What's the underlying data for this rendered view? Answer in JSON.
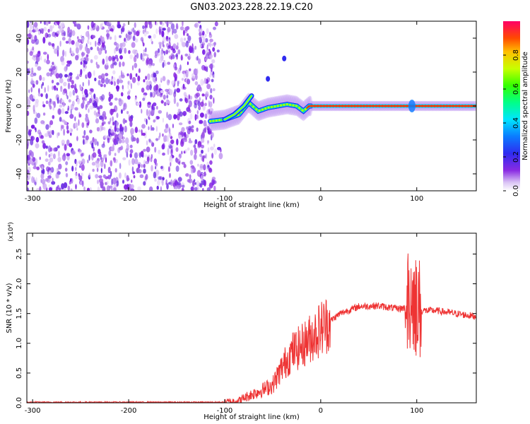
{
  "title": "GN03.2023.228.22.19.C20",
  "chart_data": [
    {
      "type": "heatmap",
      "xlabel": "Height of straight line (km)",
      "ylabel": "Frequency (Hz)",
      "xlim": [
        -306,
        162
      ],
      "ylim": [
        -50,
        50
      ],
      "x_ticks": [
        -300,
        -200,
        -100,
        0,
        100
      ],
      "y_ticks": [
        40,
        20,
        0,
        -20,
        -40
      ],
      "colorbar": {
        "label": "Normalized spectral amplitude",
        "range": [
          0,
          1
        ],
        "ticks": [
          "0.0",
          "0.2",
          "0.4",
          "0.6",
          "0.8"
        ]
      },
      "noise_region_x": [
        -306,
        -110
      ],
      "signal_track": {
        "x": [
          -115,
          -100,
          -85,
          -75,
          -65,
          -55,
          -45,
          -35,
          -25,
          -18,
          -12,
          -5,
          0,
          20,
          40,
          60,
          80,
          90,
          95,
          100,
          120,
          140,
          160
        ],
        "y": [
          -9,
          -8,
          -5,
          2,
          -3,
          -1,
          0,
          1,
          0,
          -3,
          0,
          0,
          0,
          0,
          0,
          0,
          0,
          0,
          0,
          0,
          0,
          0,
          0
        ]
      },
      "secondary_track": {
        "x": [
          -100,
          -90,
          -80,
          -72
        ],
        "y": [
          -8,
          -5,
          0,
          6
        ]
      },
      "outlier_points": {
        "x": [
          -55,
          -38
        ],
        "y": [
          16,
          28
        ]
      }
    },
    {
      "type": "line",
      "xlabel": "Height of straight line (km)",
      "ylabel": "SNR (10 * v/v)",
      "y_scale_label": "(x10⁴)",
      "xlim": [
        -306,
        162
      ],
      "ylim": [
        0,
        2.85
      ],
      "x_ticks": [
        -300,
        -200,
        -100,
        0,
        100
      ],
      "y_ticks": [
        "0.0",
        "0.5",
        "1.0",
        "1.5",
        "2.0",
        "2.5"
      ],
      "color": "#ee3333",
      "envelope": {
        "x": [
          -306,
          -100,
          -85,
          -75,
          -60,
          -50,
          -40,
          -30,
          -20,
          -10,
          0,
          20,
          40,
          60,
          80,
          90,
          95,
          100,
          105,
          120,
          140,
          162
        ],
        "y": [
          0.01,
          0.01,
          0.04,
          0.12,
          0.22,
          0.3,
          0.6,
          0.85,
          0.95,
          1.1,
          1.25,
          1.5,
          1.62,
          1.63,
          1.58,
          1.6,
          1.85,
          1.6,
          1.55,
          1.55,
          1.5,
          1.45
        ]
      }
    }
  ]
}
